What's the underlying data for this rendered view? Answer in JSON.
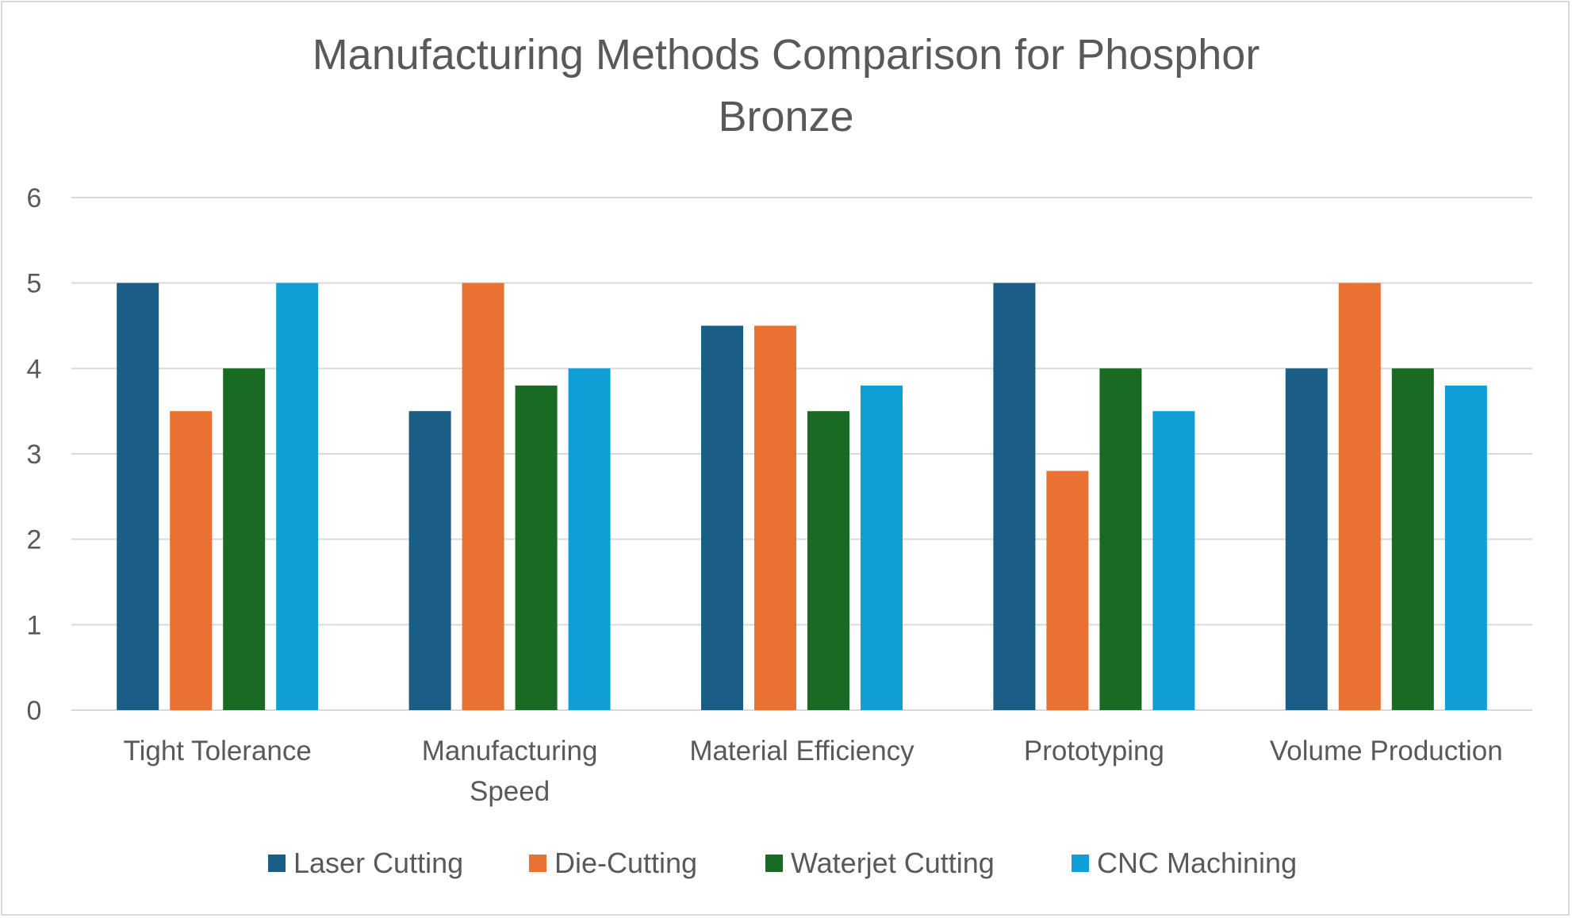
{
  "chart_data": {
    "type": "bar",
    "title": "Manufacturing Methods Comparison for Phosphor Bronze",
    "title_lines": [
      "Manufacturing Methods Comparison for Phosphor",
      "Bronze"
    ],
    "categories": [
      "Tight Tolerance",
      "Manufacturing Speed",
      "Material Efficiency",
      "Prototyping",
      "Volume Production"
    ],
    "category_lines": [
      [
        "Tight Tolerance"
      ],
      [
        "Manufacturing",
        "Speed"
      ],
      [
        "Material Efficiency"
      ],
      [
        "Prototyping"
      ],
      [
        "Volume Production"
      ]
    ],
    "series": [
      {
        "name": "Laser Cutting",
        "color": "#1a5e85",
        "values": [
          5,
          3.5,
          4.5,
          5,
          4
        ]
      },
      {
        "name": "Die-Cutting",
        "color": "#e97132",
        "values": [
          3.5,
          5,
          4.5,
          2.8,
          5
        ]
      },
      {
        "name": "Waterjet Cutting",
        "color": "#196b24",
        "values": [
          4,
          3.8,
          3.5,
          4,
          4
        ]
      },
      {
        "name": "CNC Machining",
        "color": "#0f9ed5",
        "values": [
          5,
          4,
          3.8,
          3.5,
          3.8
        ]
      }
    ],
    "ylim": [
      0,
      6
    ],
    "yticks": [
      "0",
      "1",
      "2",
      "3",
      "4",
      "5",
      "6"
    ],
    "xlabel": "",
    "ylabel": "",
    "grid": true,
    "legend_position": "bottom",
    "colors": {
      "text": "#595959",
      "grid": "#d9d9d9"
    }
  }
}
